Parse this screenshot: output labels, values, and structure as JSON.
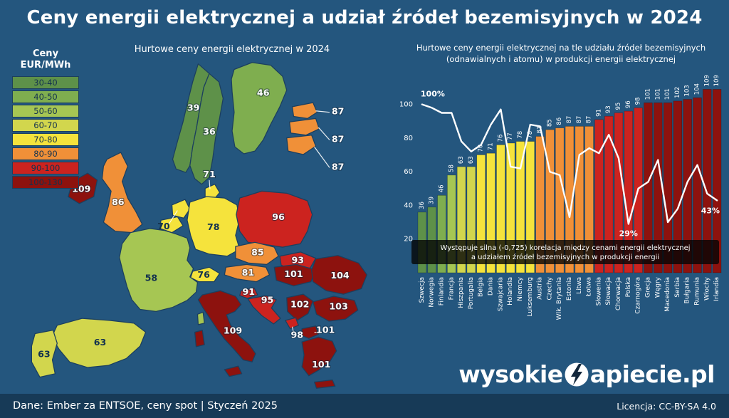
{
  "page": {
    "title": "Ceny energii elektrycznej a udział źródeł bezemisyjnych w 2024",
    "footer_left": "Dane: Ember za ENTSOE, ceny spot  |  Styczeń 2025",
    "license": "Licencja: CC-BY-SA 4.0",
    "logo_prefix": "wysokie",
    "logo_suffix": "apiecie.pl",
    "background": "#24567e"
  },
  "legend": {
    "title_line1": "Ceny",
    "title_line2": "EUR/MWh",
    "brackets": [
      {
        "label": "30-40",
        "color": "#5e9149"
      },
      {
        "label": "40-50",
        "color": "#7fae4f"
      },
      {
        "label": "50-60",
        "color": "#a6c653"
      },
      {
        "label": "60-70",
        "color": "#d2d64d"
      },
      {
        "label": "70-80",
        "color": "#f5e33c"
      },
      {
        "label": "80-90",
        "color": "#f09038"
      },
      {
        "label": "90-100",
        "color": "#cc231f"
      },
      {
        "label": "100-130",
        "color": "#8d120e"
      }
    ]
  },
  "map": {
    "title": "Hurtowe ceny energii elektrycznej w 2024",
    "countries": {
      "szwecja": {
        "name": "Szwecja",
        "value": 36
      },
      "norwegia": {
        "name": "Norwegia",
        "value": 39
      },
      "finlandia": {
        "name": "Finlandia",
        "value": 46
      },
      "estonia": {
        "name": "Estonia",
        "value": 87
      },
      "lotwa": {
        "name": "Łotwa",
        "value": 87
      },
      "litwa": {
        "name": "Litwa",
        "value": 87
      },
      "dania": {
        "name": "Dania",
        "value": 71
      },
      "irlandia": {
        "name": "Irlandia",
        "value": 109
      },
      "wlk_brytania": {
        "name": "Wlk. Brytania",
        "value": 86
      },
      "holandia": {
        "name": "Holandia",
        "value": 77
      },
      "belgia": {
        "name": "Belgia",
        "value": 70
      },
      "niemcy": {
        "name": "Niemcy",
        "value": 78
      },
      "polska": {
        "name": "Polska",
        "value": 96
      },
      "czechy": {
        "name": "Czechy",
        "value": 85
      },
      "slowacja": {
        "name": "Słowacja",
        "value": 93
      },
      "austria": {
        "name": "Austria",
        "value": 81
      },
      "szwajcaria": {
        "name": "Szwajcaria",
        "value": 76
      },
      "francja": {
        "name": "Francja",
        "value": 58
      },
      "hiszpania": {
        "name": "Hiszpania",
        "value": 63
      },
      "portugalia": {
        "name": "Portugalia",
        "value": 63
      },
      "wlochy": {
        "name": "Włochy",
        "value": 109
      },
      "slowenia": {
        "name": "Słowenia",
        "value": 91
      },
      "chorwacja": {
        "name": "Chorwacja",
        "value": 95
      },
      "wegry": {
        "name": "Węgry",
        "value": 101
      },
      "rumunia": {
        "name": "Rumunia",
        "value": 104
      },
      "serbia": {
        "name": "Serbia",
        "value": 102
      },
      "bulgaria": {
        "name": "Bułgaria",
        "value": 103
      },
      "czarnogora": {
        "name": "Czarnogóra",
        "value": 98
      },
      "macedonia": {
        "name": "Macedonia",
        "value": 101
      },
      "grecja": {
        "name": "Grecja",
        "value": 101
      }
    }
  },
  "chart_data": {
    "type": "bar",
    "title_line1": "Hurtowe ceny energii elektrycznej na tle udziału źródeł bezemisyjnych",
    "title_line2": "(odnawialnych i atomu) w produkcji energii elektrycznej",
    "categories": [
      "Szwecja",
      "Norwegia",
      "Finlandia",
      "Francja",
      "Hiszpania",
      "Portugalia",
      "Belgia",
      "Dania",
      "Szwajcaria",
      "Holandia",
      "Niemcy",
      "Luksemburg",
      "Austria",
      "Czechy",
      "Wlk. Brytania",
      "Estonia",
      "Litwa",
      "Łotwa",
      "Słowenia",
      "Słowacja",
      "Chorwacja",
      "Polska",
      "Czarnogóra",
      "Grecja",
      "Węgry",
      "Macedonia",
      "Serbia",
      "Bułgaria",
      "Rumunia",
      "Włochy",
      "Irlandia"
    ],
    "series": [
      {
        "name": "Ceny EUR/MWh",
        "type": "bar",
        "values": [
          36,
          39,
          46,
          58,
          63,
          63,
          70,
          71,
          76,
          77,
          78,
          78,
          81,
          85,
          86,
          87,
          87,
          87,
          91,
          93,
          95,
          96,
          98,
          101,
          101,
          101,
          102,
          103,
          104,
          109,
          109
        ]
      },
      {
        "name": "Udział źródeł bezemisyjnych (%)",
        "type": "line",
        "values": [
          100,
          98,
          95,
          95,
          78,
          72,
          76,
          88,
          97,
          63,
          62,
          88,
          87,
          60,
          58,
          33,
          70,
          74,
          71,
          82,
          68,
          29,
          50,
          54,
          67,
          30,
          38,
          54,
          64,
          47,
          43
        ]
      }
    ],
    "ylim": [
      0,
      110
    ],
    "yticks": [
      20,
      40,
      60,
      80,
      100
    ],
    "grid": false,
    "legend_shown": false,
    "line_labels": [
      {
        "index": 0,
        "text": "100%"
      },
      {
        "index": 21,
        "text": "29%"
      },
      {
        "index": 30,
        "text": "43%"
      }
    ],
    "annotation_line1": "Występuje silna (-0,725) korelacja między cenami energii elektrycznej",
    "annotation_line2": "a udziałem źródeł bezemisyjnych w produkcji energii"
  }
}
